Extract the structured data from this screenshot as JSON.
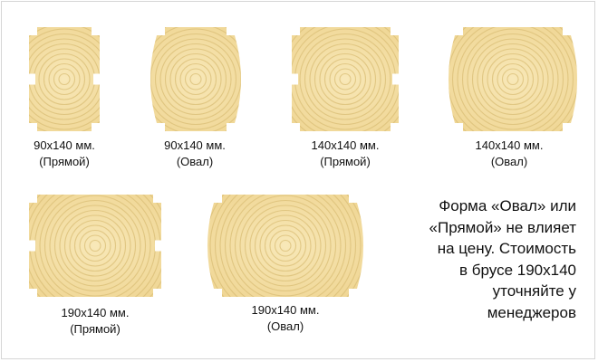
{
  "colors": {
    "wood_light": "#f8e8b8",
    "wood_mid": "#efd592",
    "ring": "#d9bd75",
    "background": "#ffffff",
    "border": "#d6d6d6"
  },
  "profiles": [
    {
      "id": "p90-straight",
      "size": "90x140 мм.",
      "shape": "(Прямой)"
    },
    {
      "id": "p90-oval",
      "size": "90x140 мм.",
      "shape": "(Овал)"
    },
    {
      "id": "p140-straight",
      "size": "140x140 мм.",
      "shape": "(Прямой)"
    },
    {
      "id": "p140-oval",
      "size": "140x140 мм.",
      "shape": "(Овал)"
    },
    {
      "id": "p190-straight",
      "size": "190x140 мм.",
      "shape": "(Прямой)"
    },
    {
      "id": "p190-oval",
      "size": "190x140 мм.",
      "shape": "(Овал)"
    }
  ],
  "note": {
    "lines": [
      "Форма «Овал» или",
      "«Прямой» не влияет",
      "на цену. Стоимость",
      "в брусе 190x140",
      "уточняйте у",
      "менеджеров"
    ]
  }
}
